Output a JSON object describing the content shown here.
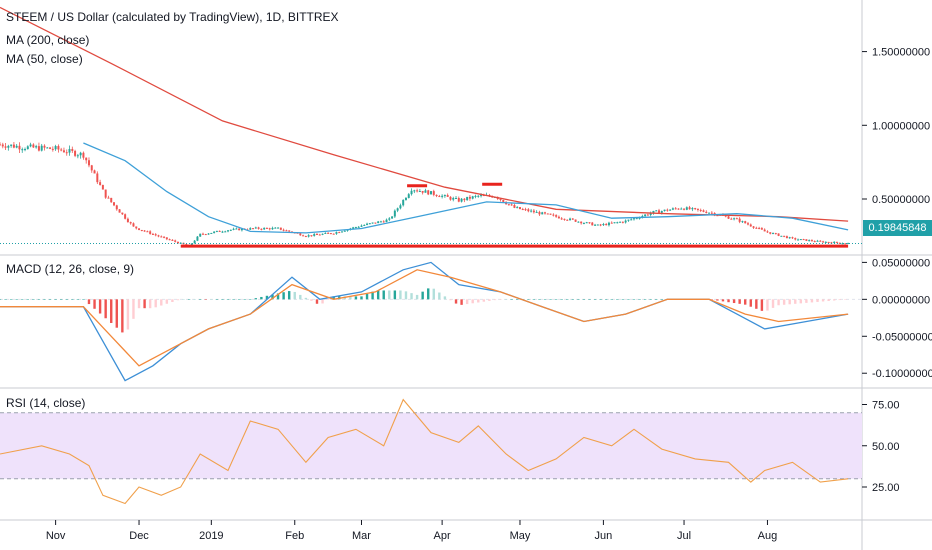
{
  "title": "STEEM / US Dollar (calculated by TradingView), 1D, BITTREX",
  "legend_ma200": "MA (200, close)",
  "legend_ma50": "MA (50, close)",
  "macd_label": "MACD (12, 26, close, 9)",
  "rsi_label": "RSI (14, close)",
  "last_price": "0.19845848",
  "colors": {
    "up": "#26a69a",
    "down": "#ef5350",
    "ma200": "#e04a3f",
    "ma50": "#3ea0d8",
    "macd": "#3d8fd6",
    "signal": "#f2883a",
    "rsi": "#f0a04b",
    "rsi_band": "#efe2fb",
    "support": "#e8231d",
    "price_tag": "#20a0a8"
  },
  "chart_data": [
    {
      "type": "candlestick",
      "pane": "price",
      "y_ticks": [
        "1.50000000",
        "1.00000000",
        "0.50000000"
      ],
      "ylim": [
        0.12,
        1.85
      ],
      "x_ticks": [
        "Nov",
        "Dec",
        "2019",
        "Feb",
        "Mar",
        "Apr",
        "May",
        "Jun",
        "Jul",
        "Aug"
      ],
      "close_path": [
        [
          0,
          0.87
        ],
        [
          10,
          0.85
        ],
        [
          20,
          0.84
        ],
        [
          30,
          0.8
        ],
        [
          38,
          0.52
        ],
        [
          48,
          0.31
        ],
        [
          58,
          0.24
        ],
        [
          68,
          0.18
        ],
        [
          72,
          0.26
        ],
        [
          82,
          0.29
        ],
        [
          92,
          0.3
        ],
        [
          100,
          0.3
        ],
        [
          110,
          0.25
        ],
        [
          120,
          0.27
        ],
        [
          130,
          0.32
        ],
        [
          140,
          0.36
        ],
        [
          148,
          0.57
        ],
        [
          155,
          0.54
        ],
        [
          165,
          0.49
        ],
        [
          172,
          0.52
        ],
        [
          178,
          0.52
        ],
        [
          185,
          0.44
        ],
        [
          195,
          0.4
        ],
        [
          205,
          0.36
        ],
        [
          215,
          0.32
        ],
        [
          225,
          0.35
        ],
        [
          235,
          0.41
        ],
        [
          245,
          0.44
        ],
        [
          255,
          0.41
        ],
        [
          265,
          0.36
        ],
        [
          275,
          0.28
        ],
        [
          285,
          0.23
        ],
        [
          295,
          0.21
        ],
        [
          305,
          0.2
        ]
      ],
      "series": [
        {
          "name": "MA (200, close)",
          "values": [
            [
              0,
              1.8
            ],
            [
              40,
              1.42
            ],
            [
              80,
              1.03
            ],
            [
              120,
              0.8
            ],
            [
              160,
              0.58
            ],
            [
              200,
              0.43
            ],
            [
              240,
              0.4
            ],
            [
              280,
              0.38
            ],
            [
              305,
              0.35
            ]
          ]
        },
        {
          "name": "MA (50, close)",
          "values": [
            [
              30,
              0.88
            ],
            [
              45,
              0.76
            ],
            [
              60,
              0.55
            ],
            [
              75,
              0.38
            ],
            [
              90,
              0.28
            ],
            [
              110,
              0.27
            ],
            [
              130,
              0.3
            ],
            [
              150,
              0.38
            ],
            [
              175,
              0.48
            ],
            [
              200,
              0.46
            ],
            [
              220,
              0.37
            ],
            [
              240,
              0.38
            ],
            [
              265,
              0.4
            ],
            [
              285,
              0.37
            ],
            [
              305,
              0.29
            ]
          ]
        }
      ],
      "annotations": [
        {
          "type": "horizontal_line",
          "value": 0.18,
          "x_from": 65,
          "x_to": 305
        },
        {
          "type": "marker",
          "x": 150,
          "value": 0.59
        },
        {
          "type": "marker",
          "x": 177,
          "value": 0.6
        }
      ]
    },
    {
      "type": "line",
      "pane": "macd",
      "y_ticks": [
        "0.05000000",
        "0.00000000",
        "-0.05000000",
        "-0.10000000"
      ],
      "ylim": [
        -0.12,
        0.06
      ],
      "series": [
        {
          "name": "MACD",
          "values": [
            [
              0,
              -0.01
            ],
            [
              30,
              -0.01
            ],
            [
              36,
              -0.05
            ],
            [
              45,
              -0.11
            ],
            [
              55,
              -0.09
            ],
            [
              65,
              -0.06
            ],
            [
              75,
              -0.04
            ],
            [
              90,
              -0.02
            ],
            [
              105,
              0.03
            ],
            [
              115,
              0.0
            ],
            [
              130,
              0.01
            ],
            [
              145,
              0.04
            ],
            [
              155,
              0.05
            ],
            [
              165,
              0.02
            ],
            [
              180,
              0.01
            ],
            [
              195,
              -0.01
            ],
            [
              210,
              -0.03
            ],
            [
              225,
              -0.02
            ],
            [
              240,
              0.0
            ],
            [
              255,
              0.0
            ],
            [
              265,
              -0.02
            ],
            [
              275,
              -0.04
            ],
            [
              290,
              -0.03
            ],
            [
              305,
              -0.02
            ]
          ]
        },
        {
          "name": "Signal",
          "values": [
            [
              0,
              -0.01
            ],
            [
              30,
              -0.01
            ],
            [
              40,
              -0.05
            ],
            [
              50,
              -0.09
            ],
            [
              60,
              -0.07
            ],
            [
              75,
              -0.04
            ],
            [
              90,
              -0.02
            ],
            [
              105,
              0.02
            ],
            [
              120,
              0.0
            ],
            [
              135,
              0.01
            ],
            [
              150,
              0.04
            ],
            [
              162,
              0.03
            ],
            [
              180,
              0.01
            ],
            [
              195,
              -0.01
            ],
            [
              210,
              -0.03
            ],
            [
              225,
              -0.02
            ],
            [
              240,
              0.0
            ],
            [
              255,
              0.0
            ],
            [
              268,
              -0.02
            ],
            [
              280,
              -0.03
            ],
            [
              305,
              -0.02
            ]
          ]
        }
      ]
    },
    {
      "type": "line",
      "pane": "rsi",
      "y_ticks": [
        "75.00",
        "50.00",
        "25.00"
      ],
      "ylim": [
        5,
        85
      ],
      "band": [
        30,
        70
      ],
      "series": [
        {
          "name": "RSI",
          "values": [
            [
              0,
              45
            ],
            [
              15,
              50
            ],
            [
              25,
              45
            ],
            [
              32,
              38
            ],
            [
              37,
              20
            ],
            [
              45,
              15
            ],
            [
              50,
              25
            ],
            [
              58,
              20
            ],
            [
              65,
              25
            ],
            [
              72,
              45
            ],
            [
              82,
              35
            ],
            [
              90,
              65
            ],
            [
              100,
              60
            ],
            [
              110,
              40
            ],
            [
              118,
              55
            ],
            [
              128,
              60
            ],
            [
              138,
              50
            ],
            [
              145,
              78
            ],
            [
              155,
              58
            ],
            [
              165,
              52
            ],
            [
              172,
              62
            ],
            [
              182,
              45
            ],
            [
              190,
              35
            ],
            [
              200,
              42
            ],
            [
              210,
              55
            ],
            [
              220,
              50
            ],
            [
              228,
              60
            ],
            [
              238,
              48
            ],
            [
              250,
              42
            ],
            [
              262,
              40
            ],
            [
              270,
              28
            ],
            [
              275,
              35
            ],
            [
              285,
              40
            ],
            [
              295,
              28
            ],
            [
              305,
              30
            ]
          ]
        }
      ]
    }
  ]
}
